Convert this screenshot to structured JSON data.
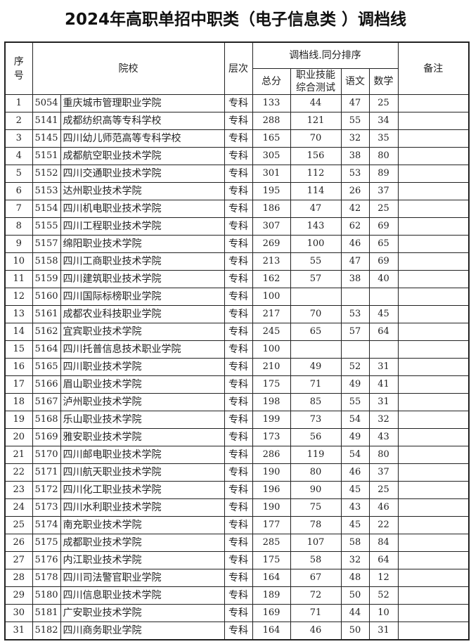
{
  "title": "2024年高职单招中职类（电子信息类 ）调档线",
  "headers": {
    "seq": "序号",
    "school": "院校",
    "level": "层次",
    "group": "调档线.同分排序",
    "total": "总分",
    "vocational": "职业技能综合测试",
    "chinese": "语文",
    "math": "数学",
    "remark": "备注"
  },
  "rows": [
    {
      "seq": "1",
      "code": "5054",
      "name": "重庆城市管理职业学院",
      "level": "专科",
      "total": "133",
      "voc": "44",
      "chn": "47",
      "math": "25",
      "remark": ""
    },
    {
      "seq": "2",
      "code": "5141",
      "name": "成都纺织高等专科学校",
      "level": "专科",
      "total": "288",
      "voc": "121",
      "chn": "55",
      "math": "34",
      "remark": ""
    },
    {
      "seq": "3",
      "code": "5145",
      "name": "四川幼儿师范高等专科学校",
      "level": "专科",
      "total": "165",
      "voc": "70",
      "chn": "32",
      "math": "35",
      "remark": ""
    },
    {
      "seq": "4",
      "code": "5151",
      "name": "成都航空职业技术学院",
      "level": "专科",
      "total": "305",
      "voc": "156",
      "chn": "38",
      "math": "80",
      "remark": ""
    },
    {
      "seq": "5",
      "code": "5152",
      "name": "四川交通职业技术学院",
      "level": "专科",
      "total": "301",
      "voc": "112",
      "chn": "53",
      "math": "89",
      "remark": ""
    },
    {
      "seq": "6",
      "code": "5153",
      "name": "达州职业技术学院",
      "level": "专科",
      "total": "195",
      "voc": "114",
      "chn": "26",
      "math": "37",
      "remark": ""
    },
    {
      "seq": "7",
      "code": "5154",
      "name": "四川机电职业技术学院",
      "level": "专科",
      "total": "186",
      "voc": "47",
      "chn": "42",
      "math": "25",
      "remark": ""
    },
    {
      "seq": "8",
      "code": "5155",
      "name": "四川工程职业技术学院",
      "level": "专科",
      "total": "307",
      "voc": "143",
      "chn": "62",
      "math": "69",
      "remark": ""
    },
    {
      "seq": "9",
      "code": "5157",
      "name": "绵阳职业技术学院",
      "level": "专科",
      "total": "269",
      "voc": "100",
      "chn": "46",
      "math": "65",
      "remark": ""
    },
    {
      "seq": "10",
      "code": "5158",
      "name": "四川工商职业技术学院",
      "level": "专科",
      "total": "213",
      "voc": "55",
      "chn": "47",
      "math": "69",
      "remark": ""
    },
    {
      "seq": "11",
      "code": "5159",
      "name": "四川建筑职业技术学院",
      "level": "专科",
      "total": "162",
      "voc": "57",
      "chn": "38",
      "math": "40",
      "remark": ""
    },
    {
      "seq": "12",
      "code": "5160",
      "name": "四川国际标榜职业学院",
      "level": "专科",
      "total": "100",
      "voc": "",
      "chn": "",
      "math": "",
      "remark": ""
    },
    {
      "seq": "13",
      "code": "5161",
      "name": "成都农业科技职业学院",
      "level": "专科",
      "total": "217",
      "voc": "70",
      "chn": "53",
      "math": "45",
      "remark": ""
    },
    {
      "seq": "14",
      "code": "5162",
      "name": "宜宾职业技术学院",
      "level": "专科",
      "total": "245",
      "voc": "65",
      "chn": "57",
      "math": "64",
      "remark": ""
    },
    {
      "seq": "15",
      "code": "5164",
      "name": "四川托普信息技术职业学院",
      "level": "专科",
      "total": "100",
      "voc": "",
      "chn": "",
      "math": "",
      "remark": ""
    },
    {
      "seq": "16",
      "code": "5165",
      "name": "四川职业技术学院",
      "level": "专科",
      "total": "210",
      "voc": "49",
      "chn": "52",
      "math": "31",
      "remark": ""
    },
    {
      "seq": "17",
      "code": "5166",
      "name": "眉山职业技术学院",
      "level": "专科",
      "total": "175",
      "voc": "71",
      "chn": "49",
      "math": "41",
      "remark": ""
    },
    {
      "seq": "18",
      "code": "5167",
      "name": "泸州职业技术学院",
      "level": "专科",
      "total": "198",
      "voc": "85",
      "chn": "55",
      "math": "31",
      "remark": ""
    },
    {
      "seq": "19",
      "code": "5168",
      "name": "乐山职业技术学院",
      "level": "专科",
      "total": "199",
      "voc": "73",
      "chn": "54",
      "math": "32",
      "remark": ""
    },
    {
      "seq": "20",
      "code": "5169",
      "name": "雅安职业技术学院",
      "level": "专科",
      "total": "173",
      "voc": "56",
      "chn": "49",
      "math": "43",
      "remark": ""
    },
    {
      "seq": "21",
      "code": "5170",
      "name": "四川邮电职业技术学院",
      "level": "专科",
      "total": "286",
      "voc": "119",
      "chn": "54",
      "math": "80",
      "remark": ""
    },
    {
      "seq": "22",
      "code": "5171",
      "name": "四川航天职业技术学院",
      "level": "专科",
      "total": "190",
      "voc": "80",
      "chn": "46",
      "math": "37",
      "remark": ""
    },
    {
      "seq": "23",
      "code": "5172",
      "name": "四川化工职业技术学院",
      "level": "专科",
      "total": "196",
      "voc": "90",
      "chn": "45",
      "math": "25",
      "remark": ""
    },
    {
      "seq": "24",
      "code": "5173",
      "name": "四川水利职业技术学院",
      "level": "专科",
      "total": "190",
      "voc": "75",
      "chn": "43",
      "math": "46",
      "remark": ""
    },
    {
      "seq": "25",
      "code": "5174",
      "name": "南充职业技术学院",
      "level": "专科",
      "total": "177",
      "voc": "78",
      "chn": "45",
      "math": "22",
      "remark": ""
    },
    {
      "seq": "26",
      "code": "5175",
      "name": "成都职业技术学院",
      "level": "专科",
      "total": "285",
      "voc": "107",
      "chn": "58",
      "math": "84",
      "remark": ""
    },
    {
      "seq": "27",
      "code": "5176",
      "name": "内江职业技术学院",
      "level": "专科",
      "total": "175",
      "voc": "58",
      "chn": "32",
      "math": "64",
      "remark": ""
    },
    {
      "seq": "28",
      "code": "5178",
      "name": "四川司法警官职业学院",
      "level": "专科",
      "total": "164",
      "voc": "67",
      "chn": "48",
      "math": "12",
      "remark": ""
    },
    {
      "seq": "29",
      "code": "5180",
      "name": "四川信息职业技术学院",
      "level": "专科",
      "total": "189",
      "voc": "72",
      "chn": "50",
      "math": "52",
      "remark": ""
    },
    {
      "seq": "30",
      "code": "5181",
      "name": "广安职业技术学院",
      "level": "专科",
      "total": "169",
      "voc": "71",
      "chn": "44",
      "math": "10",
      "remark": ""
    },
    {
      "seq": "31",
      "code": "5182",
      "name": "四川商务职业学院",
      "level": "专科",
      "total": "164",
      "voc": "46",
      "chn": "50",
      "math": "31",
      "remark": ""
    }
  ]
}
